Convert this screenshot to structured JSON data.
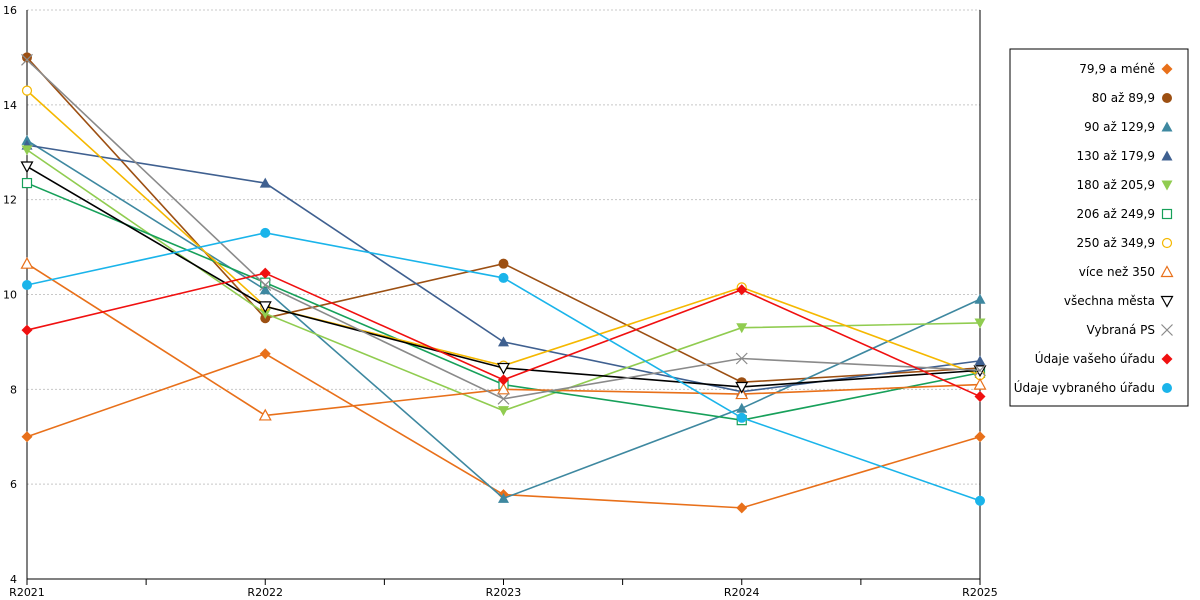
{
  "chart_data": {
    "type": "line",
    "title": "",
    "xlabel": "",
    "ylabel": "",
    "categories": [
      "R2021",
      "R2022",
      "R2023",
      "R2024",
      "R2025"
    ],
    "ylim": [
      4,
      16
    ],
    "yticks": [
      "4",
      "6",
      "8",
      "10",
      "12",
      "14",
      "16"
    ],
    "grid": true,
    "legend_position": "right",
    "series": [
      {
        "name": "79,9 a méně",
        "color": "#e8701a",
        "marker": "diamond",
        "values": [
          7.0,
          8.75,
          5.78,
          5.5,
          7.0
        ]
      },
      {
        "name": "80 až 89,9",
        "color": "#9c4f12",
        "marker": "circle-filled",
        "values": [
          15.0,
          9.5,
          10.65,
          8.15,
          8.45
        ]
      },
      {
        "name": "90 až 129,9",
        "color": "#3e88a0",
        "marker": "triangle-filled",
        "values": [
          13.25,
          10.1,
          5.7,
          7.6,
          9.9
        ]
      },
      {
        "name": "130 až 179,9",
        "color": "#3f6090",
        "marker": "triangle-filled",
        "values": [
          13.15,
          12.35,
          9.0,
          7.95,
          8.6
        ]
      },
      {
        "name": "180 až 205,9",
        "color": "#90cc50",
        "marker": "triangle-down-filled",
        "values": [
          13.05,
          9.6,
          7.55,
          9.3,
          9.4
        ]
      },
      {
        "name": "206 až 249,9",
        "color": "#17a05a",
        "marker": "square-open",
        "values": [
          12.35,
          10.25,
          8.1,
          7.35,
          8.35
        ]
      },
      {
        "name": "250 až 349,9",
        "color": "#f5b800",
        "marker": "circle-open",
        "values": [
          14.3,
          9.75,
          8.5,
          10.15,
          8.3
        ]
      },
      {
        "name": "více než 350",
        "color": "#e8701a",
        "marker": "triangle-open",
        "values": [
          10.65,
          7.45,
          8.0,
          7.9,
          8.1
        ]
      },
      {
        "name": "všechna města",
        "color": "#000000",
        "marker": "triangle-down-open",
        "values": [
          12.7,
          9.75,
          8.45,
          8.05,
          8.4
        ]
      },
      {
        "name": "Vybraná PS",
        "color": "#8a8a8a",
        "marker": "cross",
        "values": [
          14.95,
          10.2,
          7.8,
          8.65,
          8.4
        ]
      },
      {
        "name": "Údaje vašeho úřadu",
        "color": "#f01010",
        "marker": "diamond",
        "values": [
          9.25,
          10.45,
          8.2,
          10.1,
          7.85
        ]
      },
      {
        "name": "Údaje vybraného úřadu",
        "color": "#1ab4ea",
        "marker": "circle-filled",
        "values": [
          10.2,
          11.3,
          10.35,
          7.4,
          5.65
        ]
      }
    ]
  }
}
